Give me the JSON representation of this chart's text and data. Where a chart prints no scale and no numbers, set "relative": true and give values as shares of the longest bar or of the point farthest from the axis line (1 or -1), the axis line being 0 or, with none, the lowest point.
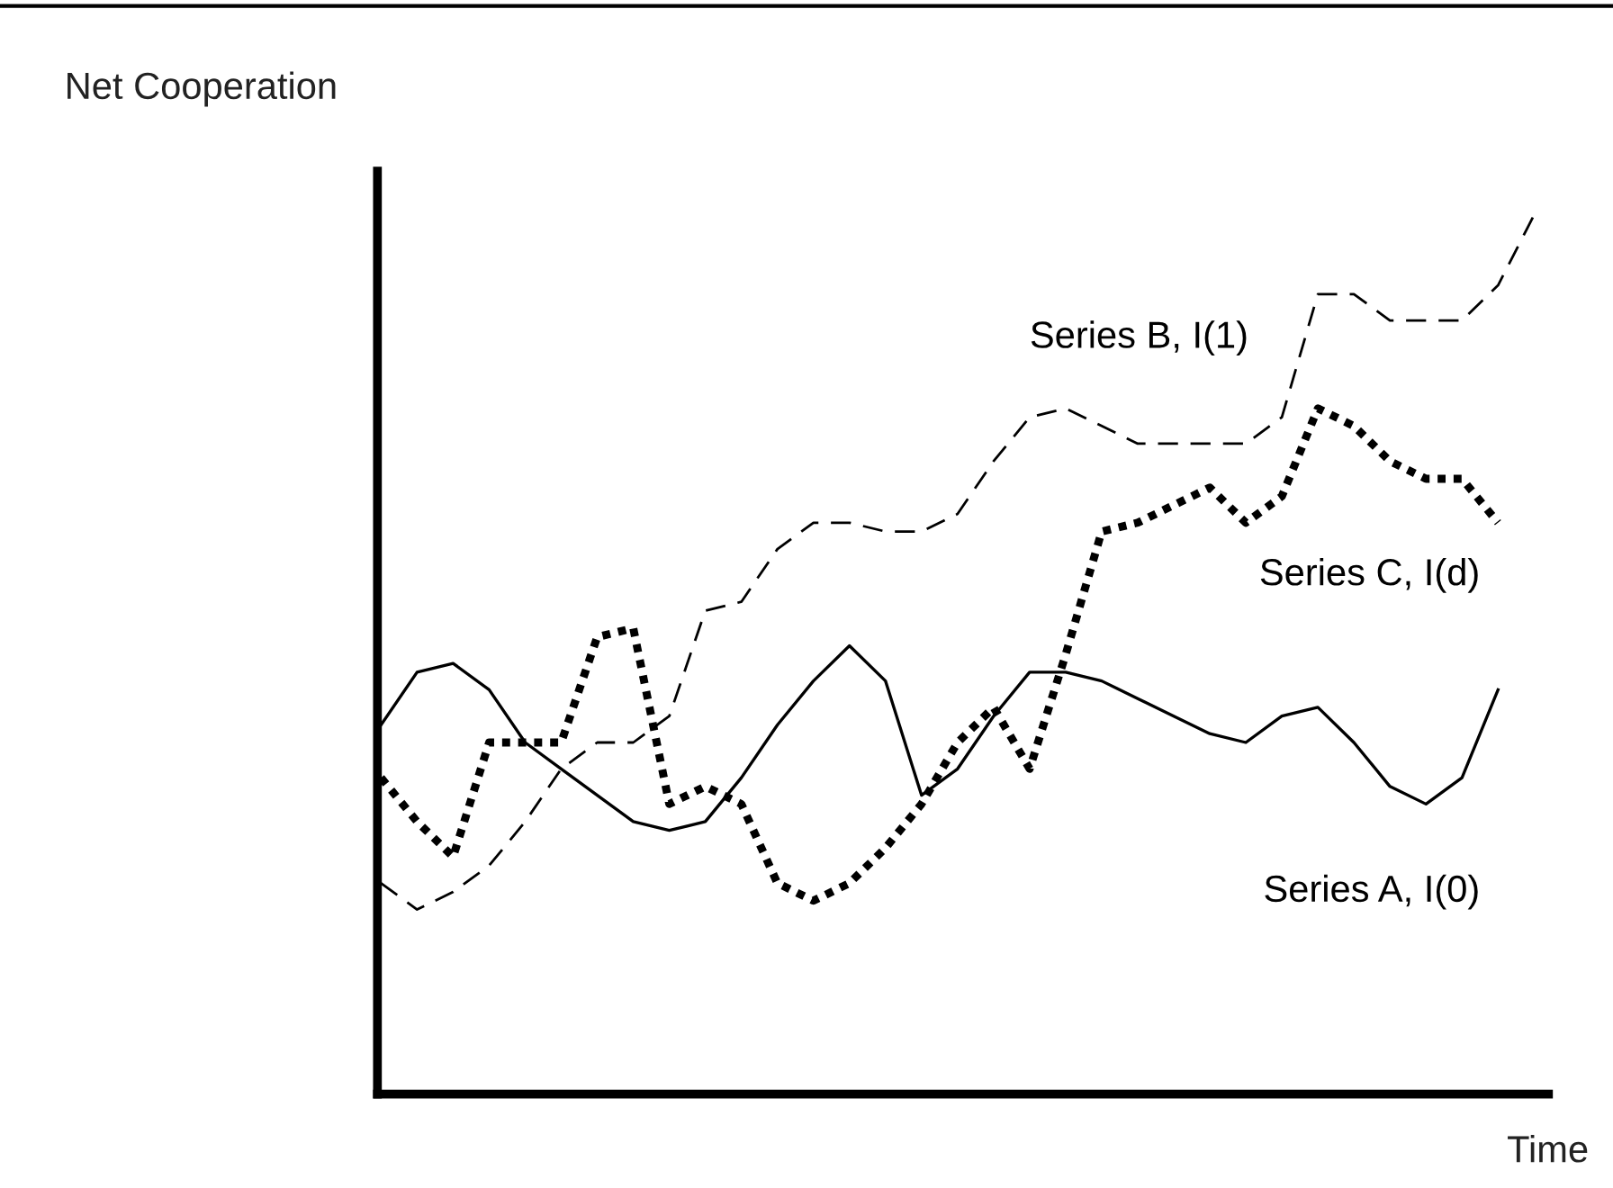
{
  "chart_data": {
    "type": "line",
    "relative": true,
    "ylabel": "Net Cooperation",
    "xlabel": "Time",
    "categories": [
      null,
      null,
      null,
      null,
      null,
      null,
      null,
      null,
      null,
      null,
      null,
      null,
      null,
      null,
      null,
      null,
      null,
      null,
      null,
      null,
      null,
      null,
      null,
      null,
      null,
      null,
      null,
      null,
      null,
      null,
      null,
      null,
      null
    ],
    "series": [
      {
        "name": "Series A, I(0)",
        "color": "#000000",
        "line_style": "solid",
        "values": [
          0.42,
          0.48,
          0.49,
          0.46,
          0.4,
          0.37,
          0.34,
          0.31,
          0.3,
          0.31,
          0.36,
          0.42,
          0.47,
          0.51,
          0.47,
          0.34,
          0.37,
          0.43,
          0.48,
          0.48,
          0.47,
          0.45,
          0.43,
          0.41,
          0.4,
          0.43,
          0.44,
          0.4,
          0.35,
          0.33,
          0.36,
          0.46,
          null
        ]
      },
      {
        "name": "Series B, I(1)",
        "color": "#000000",
        "line_style": "dashed",
        "values": [
          0.24,
          0.21,
          0.23,
          0.26,
          0.31,
          0.37,
          0.4,
          0.4,
          0.43,
          0.55,
          0.56,
          0.62,
          0.65,
          0.65,
          0.64,
          0.64,
          0.66,
          0.72,
          0.77,
          0.78,
          0.76,
          0.74,
          0.74,
          0.74,
          0.74,
          0.77,
          0.91,
          0.91,
          0.88,
          0.88,
          0.88,
          0.92,
          1.0
        ]
      },
      {
        "name": "Series C, I(d)",
        "color": "#000000",
        "line_style": "dotted",
        "values": [
          0.36,
          0.31,
          0.27,
          0.4,
          0.4,
          0.4,
          0.52,
          0.53,
          0.33,
          0.35,
          0.33,
          0.24,
          0.22,
          0.24,
          0.28,
          0.33,
          0.4,
          0.44,
          0.37,
          0.5,
          0.64,
          0.65,
          0.67,
          0.69,
          0.65,
          0.68,
          0.78,
          0.76,
          0.72,
          0.7,
          0.7,
          0.65,
          null
        ]
      }
    ],
    "legend": false,
    "marker": "none"
  }
}
